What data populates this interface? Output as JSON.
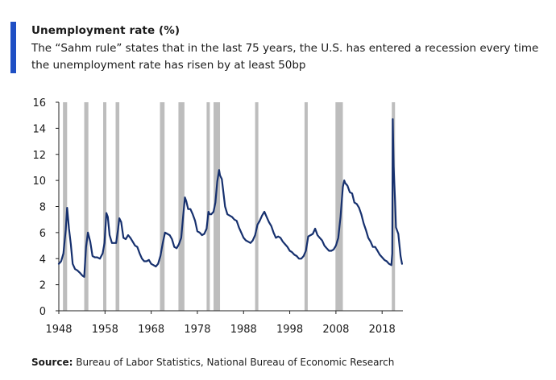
{
  "header": {
    "title": "Unemployment rate (%)",
    "subtitle": "The “Sahm rule” states that in the last 75 years, the U.S. has entered a recession every time the unemployment rate has risen by at least 50bp"
  },
  "footer": {
    "source_label": "Source:",
    "source_text": "Bureau of Labor Statistics, National Bureau of Economic Research"
  },
  "colors": {
    "accent": "#1f4fc4",
    "line": "#16306e",
    "recession": "#bdbdbd",
    "axis": "#222222"
  },
  "chart_data": {
    "type": "line",
    "title": "Unemployment rate (%)",
    "xlabel": "",
    "ylabel": "",
    "xlim": [
      1948,
      2022.5
    ],
    "ylim": [
      0,
      16
    ],
    "grid": false,
    "x_ticks": [
      1948,
      1958,
      1968,
      1978,
      1988,
      1998,
      2008,
      2018
    ],
    "x_tick_labels": [
      "1948",
      "1958",
      "1968",
      "1978",
      "1988",
      "1998",
      "2008",
      "2018"
    ],
    "y_ticks": [
      0,
      2,
      4,
      6,
      8,
      10,
      12,
      14,
      16
    ],
    "y_tick_labels": [
      "0",
      "2",
      "4",
      "6",
      "8",
      "10",
      "12",
      "14",
      "16"
    ],
    "recessions": [
      {
        "start": 1948.9,
        "end": 1949.8
      },
      {
        "start": 1953.5,
        "end": 1954.4
      },
      {
        "start": 1957.6,
        "end": 1958.3
      },
      {
        "start": 1960.3,
        "end": 1961.1
      },
      {
        "start": 1969.9,
        "end": 1970.9
      },
      {
        "start": 1973.9,
        "end": 1975.2
      },
      {
        "start": 1980.0,
        "end": 1980.5
      },
      {
        "start": 1981.5,
        "end": 1982.9
      },
      {
        "start": 1990.5,
        "end": 1991.2
      },
      {
        "start": 2001.2,
        "end": 2001.9
      },
      {
        "start": 2007.9,
        "end": 2009.5
      },
      {
        "start": 2020.1,
        "end": 2020.4
      }
    ],
    "series": [
      {
        "name": "Unemployment rate",
        "x": [
          1948.0,
          1948.5,
          1949.0,
          1949.5,
          1949.8,
          1950.2,
          1950.6,
          1951.0,
          1951.5,
          1952.0,
          1952.6,
          1953.1,
          1953.5,
          1953.9,
          1954.3,
          1954.8,
          1955.3,
          1955.8,
          1956.3,
          1956.9,
          1957.5,
          1957.9,
          1958.3,
          1958.6,
          1959.0,
          1959.5,
          1960.0,
          1960.4,
          1960.8,
          1961.1,
          1961.5,
          1962.0,
          1962.5,
          1963.0,
          1963.5,
          1964.0,
          1964.5,
          1965.0,
          1965.5,
          1966.0,
          1966.5,
          1967.0,
          1967.5,
          1968.0,
          1968.5,
          1969.0,
          1969.5,
          1970.0,
          1970.5,
          1971.0,
          1971.5,
          1972.0,
          1972.5,
          1973.0,
          1973.5,
          1974.0,
          1974.5,
          1974.9,
          1975.3,
          1975.6,
          1976.0,
          1976.5,
          1977.0,
          1977.5,
          1978.0,
          1978.5,
          1979.0,
          1979.5,
          1980.0,
          1980.4,
          1980.7,
          1981.0,
          1981.5,
          1981.9,
          1982.3,
          1982.7,
          1982.9,
          1983.3,
          1983.7,
          1984.0,
          1984.5,
          1985.0,
          1985.5,
          1986.0,
          1986.5,
          1987.0,
          1987.5,
          1988.0,
          1988.5,
          1989.0,
          1989.5,
          1990.0,
          1990.5,
          1991.0,
          1991.5,
          1992.0,
          1992.5,
          1993.0,
          1993.5,
          1994.0,
          1994.5,
          1995.0,
          1995.5,
          1996.0,
          1996.5,
          1997.0,
          1997.5,
          1998.0,
          1998.5,
          1999.0,
          1999.5,
          2000.0,
          2000.5,
          2001.0,
          2001.5,
          2002.0,
          2002.5,
          2003.0,
          2003.5,
          2004.0,
          2004.5,
          2005.0,
          2005.5,
          2006.0,
          2006.5,
          2007.0,
          2007.5,
          2008.0,
          2008.5,
          2009.0,
          2009.5,
          2009.8,
          2010.0,
          2010.5,
          2011.0,
          2011.5,
          2012.0,
          2012.5,
          2013.0,
          2013.5,
          2014.0,
          2014.5,
          2015.0,
          2015.5,
          2016.0,
          2016.5,
          2017.0,
          2017.5,
          2018.0,
          2018.5,
          2019.0,
          2019.5,
          2020.0,
          2020.2,
          2020.3,
          2020.5,
          2020.8,
          2021.0,
          2021.5,
          2022.0,
          2022.3
        ],
        "values": [
          3.6,
          3.8,
          4.4,
          6.2,
          7.9,
          6.3,
          5.1,
          3.6,
          3.2,
          3.1,
          2.9,
          2.7,
          2.6,
          4.9,
          6.0,
          5.3,
          4.2,
          4.1,
          4.1,
          4.0,
          4.4,
          5.2,
          7.5,
          7.2,
          5.8,
          5.2,
          5.2,
          5.2,
          6.2,
          7.1,
          6.8,
          5.6,
          5.5,
          5.8,
          5.6,
          5.3,
          5.0,
          4.9,
          4.4,
          4.0,
          3.8,
          3.8,
          3.9,
          3.6,
          3.5,
          3.4,
          3.6,
          4.2,
          5.2,
          6.0,
          5.9,
          5.8,
          5.5,
          4.9,
          4.8,
          5.1,
          5.6,
          7.2,
          8.7,
          8.4,
          7.8,
          7.8,
          7.4,
          6.9,
          6.1,
          6.0,
          5.8,
          5.9,
          6.3,
          7.6,
          7.4,
          7.4,
          7.6,
          8.3,
          9.9,
          10.8,
          10.4,
          10.1,
          8.9,
          8.0,
          7.4,
          7.3,
          7.2,
          7.0,
          6.9,
          6.4,
          6.0,
          5.6,
          5.4,
          5.3,
          5.2,
          5.4,
          5.8,
          6.6,
          6.9,
          7.3,
          7.6,
          7.2,
          6.8,
          6.5,
          6.0,
          5.6,
          5.7,
          5.6,
          5.3,
          5.1,
          4.9,
          4.6,
          4.5,
          4.3,
          4.2,
          4.0,
          4.0,
          4.2,
          4.6,
          5.7,
          5.8,
          5.9,
          6.3,
          5.8,
          5.6,
          5.4,
          5.0,
          4.8,
          4.6,
          4.6,
          4.7,
          5.0,
          5.6,
          7.2,
          9.5,
          10.0,
          9.8,
          9.6,
          9.1,
          9.0,
          8.3,
          8.2,
          7.9,
          7.4,
          6.7,
          6.2,
          5.6,
          5.3,
          4.9,
          4.9,
          4.6,
          4.3,
          4.1,
          3.9,
          3.8,
          3.6,
          3.5,
          4.4,
          14.7,
          11.1,
          8.4,
          6.4,
          5.9,
          4.2,
          3.6
        ]
      }
    ]
  }
}
